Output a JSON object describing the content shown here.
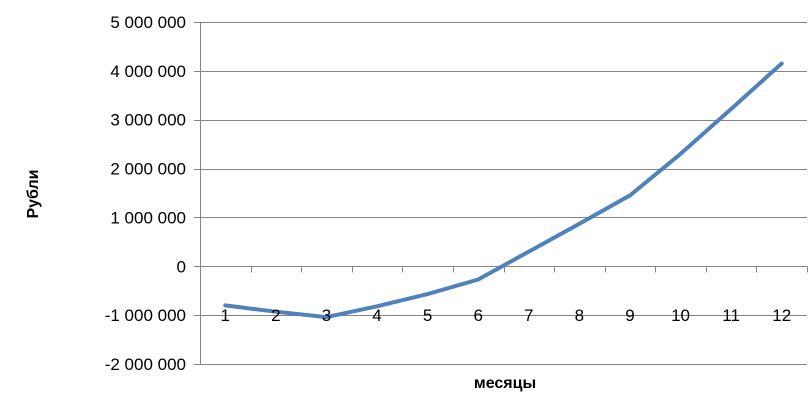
{
  "chart_data": {
    "type": "line",
    "title": "",
    "xlabel": "месяцы",
    "ylabel": "Рубли",
    "categories": [
      "1",
      "2",
      "3",
      "4",
      "5",
      "6",
      "7",
      "8",
      "9",
      "10",
      "11",
      "12"
    ],
    "series": [
      {
        "name": "",
        "color": "#4F81BD",
        "values": [
          -800000,
          -930000,
          -1040000,
          -820000,
          -570000,
          -270000,
          300000,
          870000,
          1450000,
          2300000,
          3220000,
          4150000
        ]
      }
    ],
    "ylim": [
      -2000000,
      5000000
    ],
    "yticks": [
      -2000000,
      -1000000,
      0,
      1000000,
      2000000,
      3000000,
      4000000,
      5000000
    ],
    "ytick_labels": [
      "-2 000 000",
      "-1 000 000",
      "0",
      "1 000 000",
      "2 000 000",
      "3 000 000",
      "4 000 000",
      "5 000 000"
    ],
    "grid": "horizontal",
    "legend": "none"
  }
}
